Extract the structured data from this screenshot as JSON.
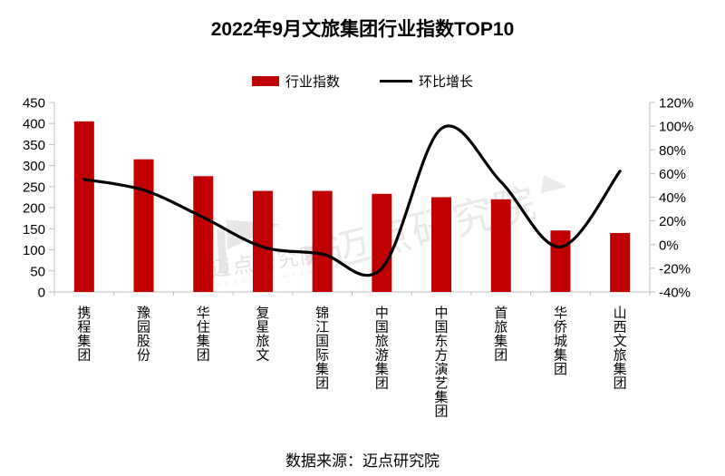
{
  "title": "2022年9月文旅集团行业指数TOP10",
  "legend": {
    "bar_label": "行业指数",
    "line_label": "环比增长"
  },
  "source": "数据来源：迈点研究院",
  "watermark": {
    "text": "迈点研究院",
    "caption": "M E A D I N   A C A D E M Y"
  },
  "colors": {
    "bar": "#C00000",
    "line": "#000000",
    "axis": "#BFBFBF",
    "tick_label": "#000000",
    "watermark": "#D5D5D5"
  },
  "chart_data": {
    "type": "bar",
    "subtype": "combo bar+line, dual axis",
    "title": "2022年9月文旅集团行业指数TOP10",
    "categories": [
      "携程集团",
      "豫园股份",
      "华住集团",
      "复星旅文",
      "锦江国际集团",
      "中国旅游集团",
      "中国东方演艺集团",
      "首旅集团",
      "华侨城集团",
      "山西文旅集团"
    ],
    "series": [
      {
        "name": "行业指数",
        "type": "bar",
        "axis": "left",
        "values": [
          405,
          315,
          275,
          240,
          240,
          233,
          225,
          220,
          146,
          140
        ]
      },
      {
        "name": "环比增长",
        "type": "line",
        "axis": "right",
        "unit": "%",
        "values": [
          55,
          46,
          23,
          -2,
          -8,
          -20,
          98,
          53,
          -2,
          62
        ]
      }
    ],
    "left_axis": {
      "min": 0,
      "max": 450,
      "step": 50,
      "format": "number"
    },
    "right_axis": {
      "min": -40,
      "max": 120,
      "step": 20,
      "format": "percent"
    },
    "grid": false,
    "legend_position": "top",
    "xlabel": "",
    "ylabel": ""
  }
}
